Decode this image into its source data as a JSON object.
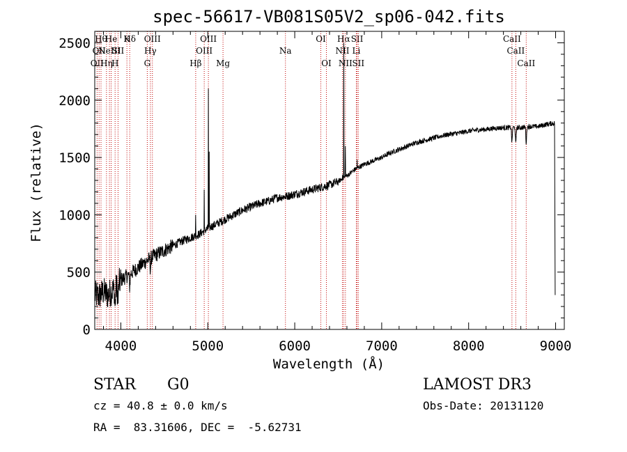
{
  "chart_data": {
    "type": "line",
    "title": "spec-56617-VB081S05V2_sp06-042.fits",
    "xlabel": "Wavelength (Å)",
    "ylabel": "Flux (relative)",
    "xlim": [
      3700,
      9100
    ],
    "ylim": [
      0,
      2600
    ],
    "xticks": [
      4000,
      5000,
      6000,
      7000,
      8000,
      9000
    ],
    "yticks": [
      0,
      500,
      1000,
      1500,
      2000,
      2500
    ],
    "xtick_labels": [
      "4000",
      "5000",
      "6000",
      "7000",
      "8000",
      "9000"
    ],
    "ytick_labels": [
      "0",
      "500",
      "1000",
      "1500",
      "2000",
      "2500"
    ],
    "continuum": {
      "x": [
        3700,
        3750,
        3800,
        3850,
        3900,
        3950,
        4000,
        4100,
        4200,
        4300,
        4400,
        4500,
        4600,
        4700,
        4800,
        4900,
        5000,
        5100,
        5200,
        5300,
        5400,
        5500,
        5600,
        5700,
        5800,
        5900,
        6000,
        6100,
        6200,
        6300,
        6400,
        6500,
        6600,
        6700,
        6800,
        6900,
        7000,
        7100,
        7200,
        7300,
        7400,
        7500,
        7600,
        7700,
        7800,
        7900,
        8000,
        8100,
        8200,
        8300,
        8400,
        8500,
        8600,
        8700,
        8800,
        8900,
        8990
      ],
      "y": [
        300,
        290,
        330,
        300,
        340,
        360,
        430,
        480,
        540,
        600,
        650,
        690,
        730,
        770,
        800,
        830,
        880,
        920,
        960,
        1000,
        1040,
        1070,
        1100,
        1120,
        1150,
        1160,
        1180,
        1200,
        1220,
        1240,
        1260,
        1290,
        1340,
        1400,
        1440,
        1470,
        1500,
        1540,
        1570,
        1600,
        1630,
        1650,
        1670,
        1690,
        1705,
        1715,
        1730,
        1740,
        1745,
        1755,
        1760,
        1760,
        1760,
        1770,
        1770,
        1790,
        1800
      ]
    },
    "emission_spikes": [
      {
        "x": 4861,
        "peak": 1000
      },
      {
        "x": 4959,
        "peak": 1220
      },
      {
        "x": 5007,
        "peak": 2100
      },
      {
        "x": 5015,
        "peak": 1550
      },
      {
        "x": 6548,
        "peak": 1350
      },
      {
        "x": 6563,
        "peak": 2500
      },
      {
        "x": 6583,
        "peak": 1600
      },
      {
        "x": 6717,
        "peak": 1480
      }
    ],
    "absorption_dips": [
      {
        "x": 3934,
        "depth": 170
      },
      {
        "x": 3968,
        "depth": 150
      },
      {
        "x": 4102,
        "depth": 120
      },
      {
        "x": 4340,
        "depth": 100
      },
      {
        "x": 8498,
        "depth": 140
      },
      {
        "x": 8542,
        "depth": 160
      },
      {
        "x": 8662,
        "depth": 150
      }
    ],
    "edge_drop": {
      "x": 8995,
      "to": 300
    },
    "lines": [
      {
        "x": 3727,
        "row": 0,
        "label": "OII"
      },
      {
        "x": 3750,
        "row": 1,
        "label": "OII"
      },
      {
        "x": 3772,
        "row": 2,
        "label": "Hθ"
      },
      {
        "x": 3835,
        "row": 0,
        "label": "Hη"
      },
      {
        "x": 3869,
        "row": 1,
        "label": "NeIII"
      },
      {
        "x": 3889,
        "row": 2,
        "label": "He"
      },
      {
        "x": 3934,
        "row": 0,
        "label": "H"
      },
      {
        "x": 3968,
        "row": 1,
        "label": "SII"
      },
      {
        "x": 4070,
        "row": 2,
        "label": "K"
      },
      {
        "x": 4102,
        "row": 2,
        "label": "Hδ"
      },
      {
        "x": 4304,
        "row": 0,
        "label": "G"
      },
      {
        "x": 4340,
        "row": 1,
        "label": "Hγ"
      },
      {
        "x": 4363,
        "row": 2,
        "label": "OIII"
      },
      {
        "x": 4861,
        "row": 0,
        "label": "Hβ"
      },
      {
        "x": 4959,
        "row": 1,
        "label": "OIII"
      },
      {
        "x": 5007,
        "row": 2,
        "label": "OIII"
      },
      {
        "x": 5175,
        "row": 0,
        "label": "Mg"
      },
      {
        "x": 5893,
        "row": 1,
        "label": "Na"
      },
      {
        "x": 6300,
        "row": 2,
        "label": "OI"
      },
      {
        "x": 6364,
        "row": 0,
        "label": "OI"
      },
      {
        "x": 6548,
        "row": 1,
        "label": "NII"
      },
      {
        "x": 6563,
        "row": 2,
        "label": "Hα"
      },
      {
        "x": 6583,
        "row": 0,
        "label": "NII"
      },
      {
        "x": 6708,
        "row": 1,
        "label": "Li"
      },
      {
        "x": 6717,
        "row": 2,
        "label": "SII"
      },
      {
        "x": 6731,
        "row": 0,
        "label": "SII"
      },
      {
        "x": 8498,
        "row": 2,
        "label": "CaII"
      },
      {
        "x": 8542,
        "row": 1,
        "label": "CaII"
      },
      {
        "x": 8662,
        "row": 0,
        "label": "CaII"
      }
    ]
  },
  "info": {
    "object_class": "STAR",
    "subclass": "G0",
    "survey": "LAMOST DR3",
    "redshift": "cz = 40.8 ± 0.0 km/s",
    "obs_date": "Obs-Date: 20131120",
    "coords": "RA =  83.31606, DEC =  -5.62731"
  }
}
